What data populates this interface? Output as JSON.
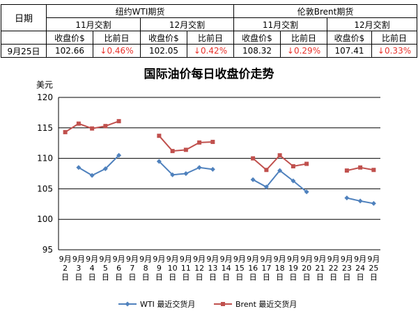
{
  "table": {
    "date_header": "日期",
    "groups": [
      {
        "name": "纽约WTI期货",
        "contracts": [
          "11月交割",
          "12月交割"
        ]
      },
      {
        "name": "伦敦Brent期货",
        "contracts": [
          "11月交割",
          "12月交割"
        ]
      }
    ],
    "col_close": "收盘价$",
    "col_change": "比前日",
    "row": {
      "date": "9月25日",
      "values": [
        {
          "close": "102.66",
          "change": "0.46%"
        },
        {
          "close": "102.05",
          "change": "0.42%"
        },
        {
          "close": "108.32",
          "change": "0.29%"
        },
        {
          "close": "107.41",
          "change": "0.33%"
        }
      ],
      "down_arrow": "↓",
      "down_color": "#e8322b"
    }
  },
  "chart_data": {
    "type": "line",
    "title": "国际油价每日收盘价走势",
    "ylabel": "美元",
    "ylim": [
      95,
      120
    ],
    "yticks": [
      95,
      100,
      105,
      110,
      115,
      120
    ],
    "grid": true,
    "legend_position": "bottom",
    "categories": [
      "9月2日",
      "9月3日",
      "9月4日",
      "9月5日",
      "9月6日",
      "9月7日",
      "9月8日",
      "9月9日",
      "9月10日",
      "9月11日",
      "9月12日",
      "9月13日",
      "9月14日",
      "9月15日",
      "9月16日",
      "9月17日",
      "9月18日",
      "9月19日",
      "9月20日",
      "9月21日",
      "9月22日",
      "9月23日",
      "9月24日",
      "9月25日"
    ],
    "series": [
      {
        "name": "WTI 最近交货月",
        "color": "#4f81bd",
        "marker": "diamond",
        "values": [
          null,
          108.5,
          107.2,
          108.3,
          110.5,
          null,
          null,
          109.5,
          107.3,
          107.5,
          108.5,
          108.2,
          null,
          null,
          106.5,
          105.3,
          108.0,
          106.3,
          104.5,
          null,
          null,
          103.5,
          103.0,
          102.6
        ]
      },
      {
        "name": "Brent 最近交货月",
        "color": "#c0504d",
        "marker": "square",
        "values": [
          114.3,
          115.7,
          114.9,
          115.3,
          116.1,
          null,
          null,
          113.7,
          111.2,
          111.4,
          112.6,
          112.7,
          null,
          null,
          110.0,
          108.1,
          110.5,
          108.7,
          109.1,
          null,
          null,
          108.0,
          108.5,
          108.1
        ]
      }
    ]
  }
}
